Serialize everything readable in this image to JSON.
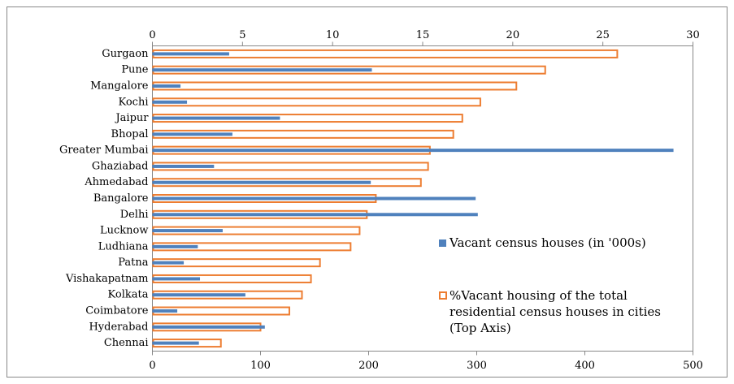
{
  "chart_data": {
    "type": "bar",
    "orientation": "horizontal",
    "categories": [
      "Gurgaon",
      "Pune",
      "Mangalore",
      "Kochi",
      "Jaipur",
      "Bhopal",
      "Greater Mumbai",
      "Ghaziabad",
      "Ahmedabad",
      "Bangalore",
      "Delhi",
      "Lucknow",
      "Ludhiana",
      "Patna",
      "Vishakapatnam",
      "Kolkata",
      "Coimbatore",
      "Hyderabad",
      "Chennai"
    ],
    "series": [
      {
        "name": "%Vacant housing of the total residential census houses in cities (Top Axis)",
        "color": "#ED7D31",
        "axis": "x2",
        "values": [
          25.8,
          21.8,
          20.2,
          18.2,
          17.2,
          16.7,
          15.4,
          15.3,
          14.9,
          12.4,
          11.9,
          11.5,
          11.0,
          9.3,
          8.8,
          8.3,
          7.6,
          6.0,
          3.8
        ]
      },
      {
        "name": "Vacant census houses (in '000s)",
        "color": "#4F81BD",
        "values": [
          71,
          203,
          26,
          32,
          118,
          74,
          482,
          57,
          202,
          299,
          301,
          65,
          42,
          29,
          44,
          86,
          23,
          104,
          43
        ]
      }
    ],
    "xlim": [
      0,
      500
    ],
    "xticks": [
      0,
      100,
      200,
      300,
      400,
      500
    ],
    "x2lim": [
      0,
      30
    ],
    "x2ticks": [
      0,
      5,
      10,
      15,
      20,
      25,
      30
    ]
  }
}
